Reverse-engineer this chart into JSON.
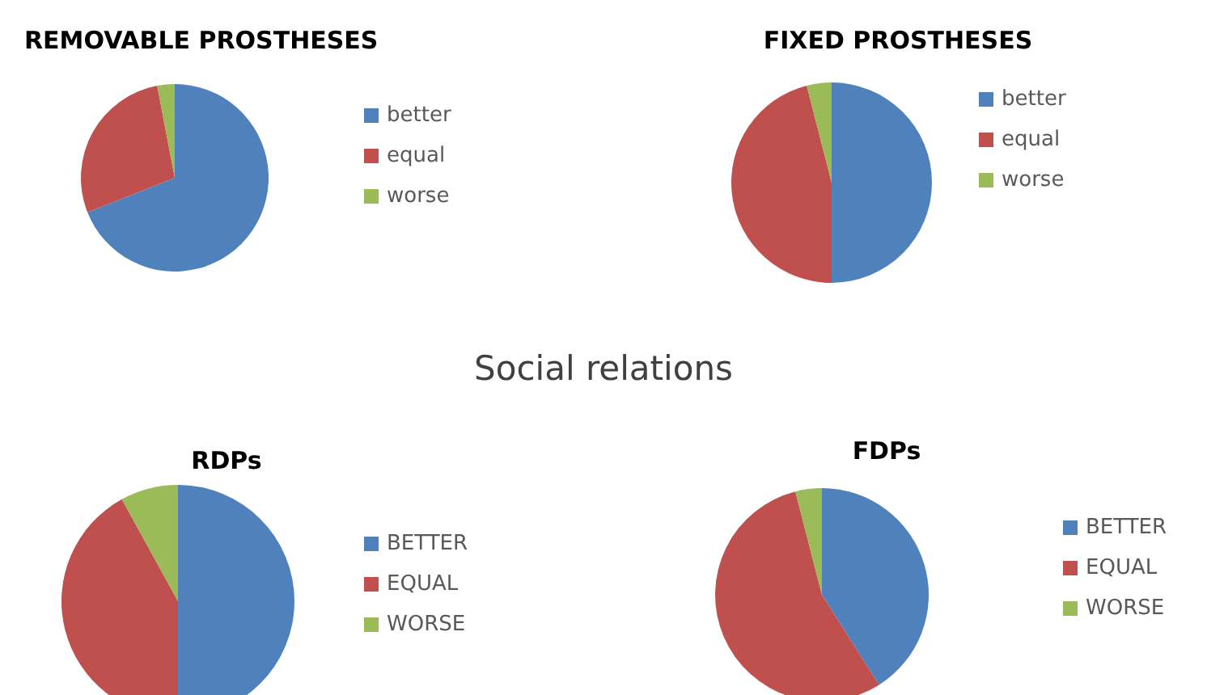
{
  "chart_data": [
    {
      "type": "pie",
      "title": "REMOVABLE PROSTHESES",
      "categories": [
        "better",
        "equal",
        "worse"
      ],
      "values": [
        69,
        28,
        3
      ],
      "colors": [
        "#4f81bd",
        "#c0504d",
        "#9bbb59"
      ],
      "legend": "right"
    },
    {
      "type": "pie",
      "title": "FIXED PROSTHESES",
      "categories": [
        "better",
        "equal",
        "worse"
      ],
      "values": [
        50,
        46,
        4
      ],
      "colors": [
        "#4f81bd",
        "#c0504d",
        "#9bbb59"
      ],
      "legend": "right"
    },
    {
      "type": "other",
      "title": "Social relations"
    },
    {
      "type": "pie",
      "title": "RDPs",
      "categories": [
        "BETTER",
        "EQUAL",
        "WORSE"
      ],
      "values": [
        50,
        42,
        8
      ],
      "colors": [
        "#4f81bd",
        "#c0504d",
        "#9bbb59"
      ],
      "legend": "right"
    },
    {
      "type": "pie",
      "title": "FDPs",
      "categories": [
        "BETTER",
        "EQUAL",
        "WORSE"
      ],
      "values": [
        41,
        55,
        4
      ],
      "colors": [
        "#4f81bd",
        "#c0504d",
        "#9bbb59"
      ],
      "legend": "right"
    }
  ]
}
